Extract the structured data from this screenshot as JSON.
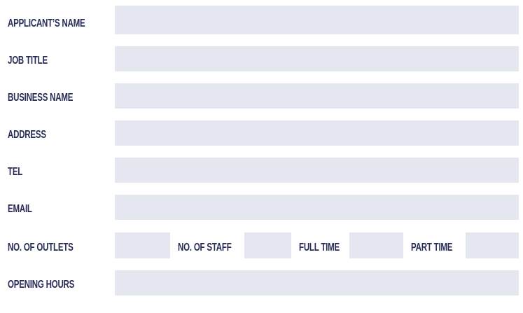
{
  "form": {
    "applicant_name": {
      "label": "APPLICANT’S NAME",
      "value": ""
    },
    "job_title": {
      "label": "JOB TITLE",
      "value": ""
    },
    "business_name": {
      "label": "BUSINESS NAME",
      "value": ""
    },
    "address": {
      "label": "ADDRESS",
      "value": ""
    },
    "tel": {
      "label": "TEL",
      "value": ""
    },
    "email": {
      "label": "EMAIL",
      "value": ""
    },
    "outlets": {
      "label": "NO. OF OUTLETS",
      "value": ""
    },
    "staff": {
      "label": "NO. OF STAFF",
      "value": ""
    },
    "full_time": {
      "label": "FULL TIME",
      "value": ""
    },
    "part_time": {
      "label": "PART TIME",
      "value": ""
    },
    "opening_hours": {
      "label": "OPENING HOURS",
      "value": ""
    }
  },
  "colors": {
    "label": "#262a55",
    "field": "#e4e7f0"
  }
}
